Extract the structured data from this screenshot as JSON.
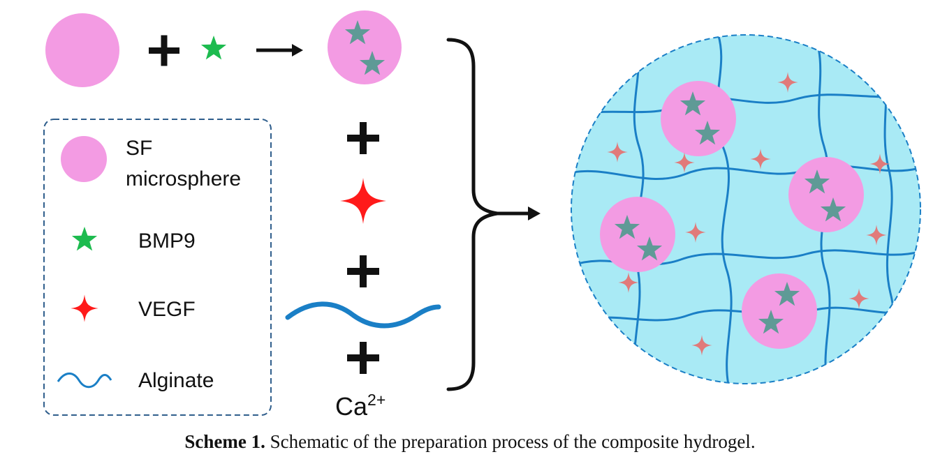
{
  "legend": {
    "items": [
      {
        "label_line1": "SF",
        "label_line2": "microsphere",
        "icon": "pink-circle-icon"
      },
      {
        "label": "BMP9",
        "icon": "green-star-icon"
      },
      {
        "label": "VEGF",
        "icon": "red-four-point-star-icon"
      },
      {
        "label": "Alginate",
        "icon": "blue-wave-icon"
      }
    ]
  },
  "reagent": {
    "ion": "Ca",
    "charge": "2+"
  },
  "caption": {
    "label": "Scheme 1.",
    "text": " Schematic of the preparation process of the composite hydrogel."
  },
  "colors": {
    "sf_microsphere": "#f39be3",
    "bmp9_free": "#1dbb4f",
    "bmp9_loaded": "#5f9a96",
    "vegf": "#ff1a1a",
    "vegf_in_gel": "#e17a7a",
    "alginate": "#1a7fc6",
    "gel_fill": "#a9eaf5",
    "legend_border": "#2f5e8c"
  }
}
